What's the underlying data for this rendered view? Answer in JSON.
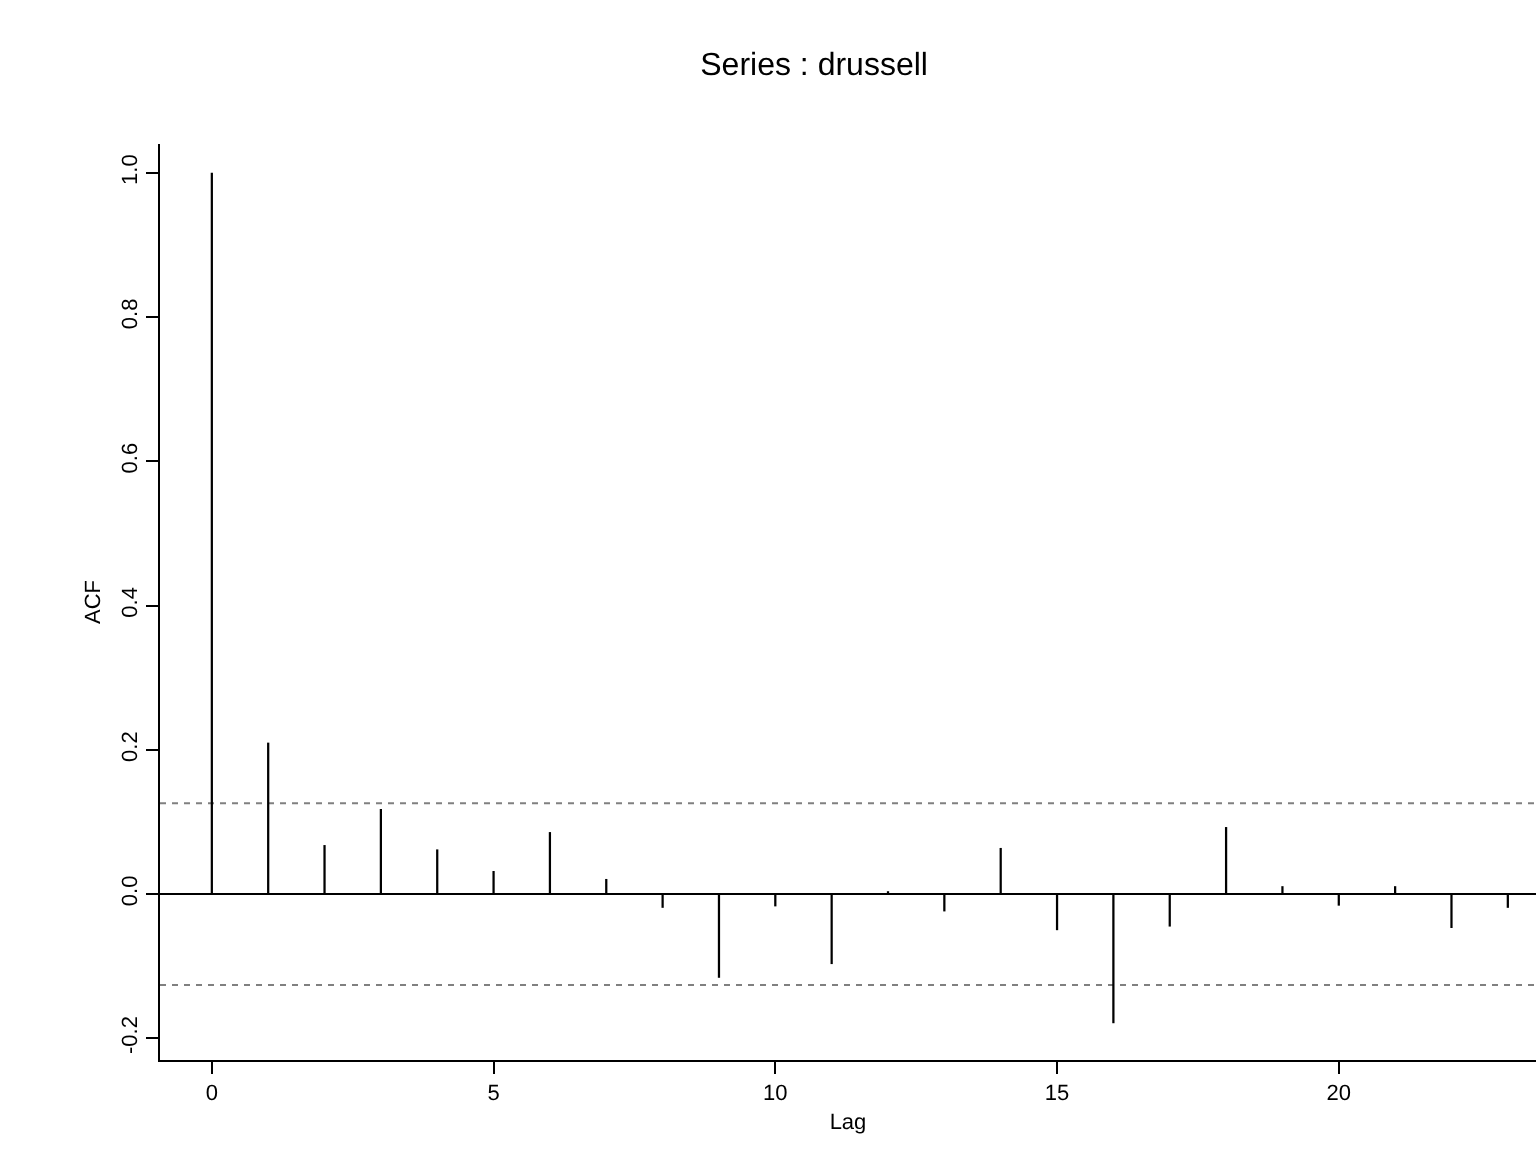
{
  "chart_data": {
    "type": "bar",
    "title": "Series : drussell",
    "xlabel": "Lag",
    "ylabel": "ACF",
    "x": [
      0,
      1,
      2,
      3,
      4,
      5,
      6,
      7,
      8,
      9,
      10,
      11,
      12,
      13,
      14,
      15,
      16,
      17,
      18,
      19,
      20,
      21,
      22,
      23
    ],
    "values": [
      1.0,
      0.21,
      0.068,
      0.118,
      0.062,
      0.032,
      0.086,
      0.021,
      -0.019,
      -0.116,
      -0.017,
      -0.097,
      0.004,
      -0.024,
      0.064,
      -0.05,
      -0.179,
      -0.045,
      0.093,
      0.011,
      -0.016,
      0.011,
      -0.047,
      -0.019
    ],
    "color": "#000000",
    "xlim": [
      -0.92,
      23.5
    ],
    "xticks": [
      0,
      5,
      10,
      15,
      20
    ],
    "ylim": [
      -0.23,
      1.04
    ],
    "yticks": [
      {
        "value": -0.2,
        "label": "-0.2"
      },
      {
        "value": 0,
        "label": "0.0"
      },
      {
        "value": 0.2,
        "label": "0.2"
      },
      {
        "value": 0.4,
        "label": "0.4"
      },
      {
        "value": 0.6,
        "label": "0.6"
      },
      {
        "value": 0.8,
        "label": "0.8"
      },
      {
        "value": 1,
        "label": "1.0"
      }
    ],
    "ref_lines": [
      {
        "axis": "y",
        "value": 0,
        "color": "#000000",
        "line_style": "solid"
      },
      {
        "axis": "y",
        "value": 0.126,
        "color": "#808080",
        "line_style": "dotted"
      },
      {
        "axis": "y",
        "value": -0.126,
        "color": "#808080",
        "line_style": "dotted"
      }
    ]
  }
}
